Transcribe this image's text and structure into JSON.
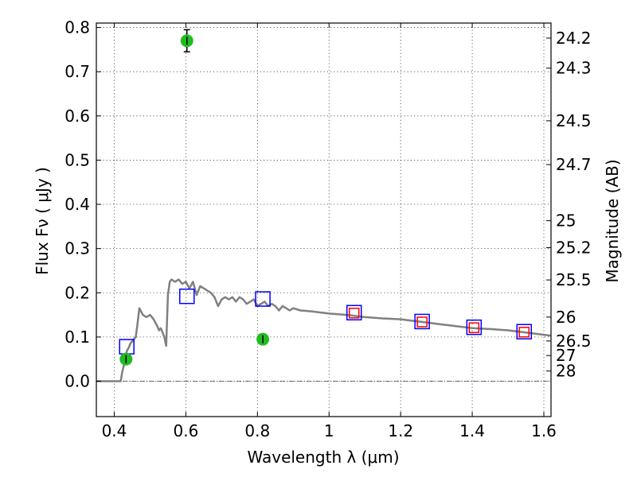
{
  "chart_data": {
    "type": "scatter",
    "xlabel": "Wavelength  λ (μm)",
    "ylabel": "Flux  Fν  ( μJy )",
    "y2label": "Magnitude (AB)",
    "xlim": [
      0.35,
      1.62
    ],
    "ylim": [
      -0.08,
      0.81
    ],
    "grid": true,
    "x_ticks": [
      0.4,
      0.6,
      0.8,
      1.0,
      1.2,
      1.4,
      1.6
    ],
    "x_tick_labels": [
      "0.4",
      "0.6",
      "0.8",
      "1",
      "1.2",
      "1.4",
      "1.6"
    ],
    "y_ticks": [
      0.0,
      0.1,
      0.2,
      0.3,
      0.4,
      0.5,
      0.6,
      0.7,
      0.8
    ],
    "y_tick_labels": [
      "0.0",
      "0.1",
      "0.2",
      "0.3",
      "0.4",
      "0.5",
      "0.6",
      "0.7",
      "0.8"
    ],
    "mag_ticks": [
      {
        "flux": 0.776,
        "label": "24.2"
      },
      {
        "flux": 0.708,
        "label": "24.3"
      },
      {
        "flux": 0.589,
        "label": "24.5"
      },
      {
        "flux": 0.49,
        "label": "24.7"
      },
      {
        "flux": 0.363,
        "label": "25"
      },
      {
        "flux": 0.302,
        "label": "25.2"
      },
      {
        "flux": 0.229,
        "label": "25.5"
      },
      {
        "flux": 0.145,
        "label": "26"
      },
      {
        "flux": 0.091,
        "label": "26.5"
      },
      {
        "flux": 0.058,
        "label": "27"
      },
      {
        "flux": 0.023,
        "label": "28"
      }
    ],
    "zero_line": 0.0,
    "series": [
      {
        "kind": "line",
        "color": "#808080",
        "x": [
          0.35,
          0.418,
          0.422,
          0.428,
          0.432,
          0.436,
          0.44,
          0.445,
          0.45,
          0.455,
          0.46,
          0.465,
          0.47,
          0.48,
          0.49,
          0.5,
          0.51,
          0.52,
          0.525,
          0.53,
          0.535,
          0.54,
          0.545,
          0.55,
          0.555,
          0.56,
          0.57,
          0.58,
          0.59,
          0.6,
          0.61,
          0.62,
          0.63,
          0.64,
          0.65,
          0.66,
          0.67,
          0.68,
          0.69,
          0.7,
          0.71,
          0.72,
          0.73,
          0.74,
          0.75,
          0.76,
          0.77,
          0.78,
          0.79,
          0.8,
          0.81,
          0.82,
          0.83,
          0.84,
          0.85,
          0.86,
          0.87,
          0.88,
          0.89,
          0.9,
          0.92,
          0.95,
          1.0,
          1.05,
          1.1,
          1.15,
          1.2,
          1.25,
          1.3,
          1.35,
          1.4,
          1.45,
          1.5,
          1.55,
          1.6,
          1.62
        ],
        "y": [
          0.0,
          0.0,
          0.02,
          0.04,
          0.06,
          0.07,
          0.075,
          0.085,
          0.09,
          0.095,
          0.1,
          0.13,
          0.165,
          0.15,
          0.145,
          0.15,
          0.14,
          0.125,
          0.115,
          0.12,
          0.11,
          0.1,
          0.08,
          0.195,
          0.225,
          0.23,
          0.225,
          0.23,
          0.22,
          0.225,
          0.21,
          0.225,
          0.195,
          0.215,
          0.21,
          0.205,
          0.2,
          0.19,
          0.17,
          0.185,
          0.19,
          0.185,
          0.19,
          0.18,
          0.19,
          0.185,
          0.175,
          0.18,
          0.185,
          0.17,
          0.175,
          0.18,
          0.17,
          0.175,
          0.17,
          0.16,
          0.17,
          0.165,
          0.16,
          0.165,
          0.16,
          0.158,
          0.153,
          0.15,
          0.145,
          0.142,
          0.14,
          0.135,
          0.13,
          0.125,
          0.12,
          0.118,
          0.115,
          0.11,
          0.105,
          0.103
        ]
      },
      {
        "kind": "squares",
        "color": "#0000ff",
        "x": [
          0.435,
          0.603,
          0.815,
          1.07,
          1.26,
          1.405,
          1.545
        ],
        "y": [
          0.078,
          0.192,
          0.186,
          0.155,
          0.135,
          0.122,
          0.112
        ]
      },
      {
        "kind": "squares",
        "color": "#ff0000",
        "x": [
          1.07,
          1.26,
          1.405,
          1.545
        ],
        "y": [
          0.154,
          0.134,
          0.121,
          0.111
        ]
      },
      {
        "kind": "points-errorbars",
        "color": "#22bb22",
        "x": [
          0.433,
          0.603,
          0.815
        ],
        "y": [
          0.05,
          0.77,
          0.095
        ],
        "yerr": [
          0.008,
          0.025,
          0.008
        ]
      }
    ]
  }
}
